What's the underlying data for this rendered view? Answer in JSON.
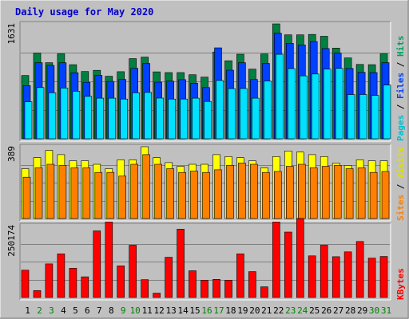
{
  "chart_data": {
    "type": "bar",
    "title": "Daily usage for May 2020",
    "days": [
      "1",
      "2",
      "3",
      "4",
      "5",
      "6",
      "7",
      "8",
      "9",
      "10",
      "11",
      "12",
      "13",
      "14",
      "15",
      "16",
      "17",
      "18",
      "19",
      "20",
      "21",
      "22",
      "23",
      "24",
      "25",
      "26",
      "27",
      "28",
      "29",
      "30",
      "31"
    ],
    "weekend_days": [
      "2",
      "3",
      "9",
      "10",
      "16",
      "17",
      "23",
      "24",
      "30",
      "31"
    ],
    "colors": {
      "background": "#c0c0c0",
      "hits": "#008040",
      "files": "#0040ff",
      "pages": "#00e0ff",
      "visits": "#ffff00",
      "sites": "#ff8000",
      "kbytes": "#ff0000",
      "title": "#0000cc",
      "weekend_tick": "#008000",
      "weekday_tick": "#000000"
    },
    "panels": [
      {
        "id": "top",
        "ytick": "1631",
        "ymax": 1631,
        "legend": [
          {
            "label": "Pages",
            "color": "#00c0d0"
          },
          {
            "label": " / ",
            "color": "#000000"
          },
          {
            "label": "Files",
            "color": "#0040ff"
          },
          {
            "label": " / ",
            "color": "#000000"
          },
          {
            "label": "Hits",
            "color": "#00a060"
          }
        ],
        "series": [
          {
            "name": "Hits",
            "color": "#008040",
            "values": [
              898,
              1216,
              1081,
              1206,
              1052,
              955,
              972,
              888,
              953,
              1138,
              1160,
              950,
              940,
              940,
              910,
              875,
              1232,
              1108,
              1201,
              989,
              1204,
              1631,
              1476,
              1476,
              1482,
              1456,
              1288,
              1148,
              1056,
              1052,
              1206
            ]
          },
          {
            "name": "Files",
            "color": "#0040ff",
            "values": [
              755,
              1081,
              1042,
              1081,
              938,
              802,
              900,
              814,
              842,
              1000,
              1069,
              804,
              819,
              839,
              790,
              727,
              1291,
              974,
              1081,
              842,
              1070,
              1500,
              1355,
              1333,
              1381,
              1281,
              1216,
              999,
              943,
              940,
              1081
            ]
          },
          {
            "name": "Pages",
            "color": "#00e0ff",
            "values": [
              525,
              727,
              654,
              720,
              675,
              602,
              576,
              576,
              564,
              654,
              658,
              578,
              564,
              564,
              576,
              530,
              828,
              712,
              714,
              576,
              820,
              1200,
              997,
              894,
              920,
              990,
              1000,
              628,
              629,
              615,
              762
            ]
          }
        ]
      },
      {
        "id": "middle",
        "ytick": "389",
        "ymax": 389,
        "legend": [
          {
            "label": "Sites",
            "color": "#ff8000"
          },
          {
            "label": " / ",
            "color": "#000000"
          },
          {
            "label": "Visits",
            "color": "#e0e000"
          }
        ],
        "series": [
          {
            "name": "Visits",
            "color": "#ffff00",
            "values": [
              270,
              330,
              369,
              346,
              313,
              313,
              294,
              270,
              318,
              318,
              389,
              330,
              303,
              283,
              294,
              294,
              346,
              336,
              330,
              313,
              275,
              336,
              366,
              360,
              346,
              336,
              301,
              288,
              318,
              313,
              313
            ]
          },
          {
            "name": "Sites",
            "color": "#ff8000",
            "values": [
              224,
              275,
              294,
              288,
              275,
              275,
              250,
              250,
              230,
              294,
              346,
              294,
              270,
              250,
              257,
              250,
              264,
              288,
              301,
              294,
              250,
              255,
              283,
              294,
              275,
              283,
              288,
              270,
              275,
              250,
              255
            ]
          }
        ]
      },
      {
        "id": "bottom",
        "ytick": "250174",
        "ymax": 250174,
        "legend": [
          {
            "label": "KBytes",
            "color": "#ff0000"
          }
        ],
        "series": [
          {
            "name": "KBytes",
            "color": "#ff0000",
            "values": [
              95000,
              24000,
              117000,
              152000,
              102000,
              72000,
              232000,
              263000,
              110000,
              182000,
              62000,
              15000,
              140000,
              238000,
              93000,
              60000,
              63000,
              60000,
              152000,
              90000,
              37000,
              263000,
              228000,
              275000,
              145000,
              182000,
              142000,
              159000,
              195000,
              137000,
              143000
            ]
          }
        ]
      }
    ]
  }
}
